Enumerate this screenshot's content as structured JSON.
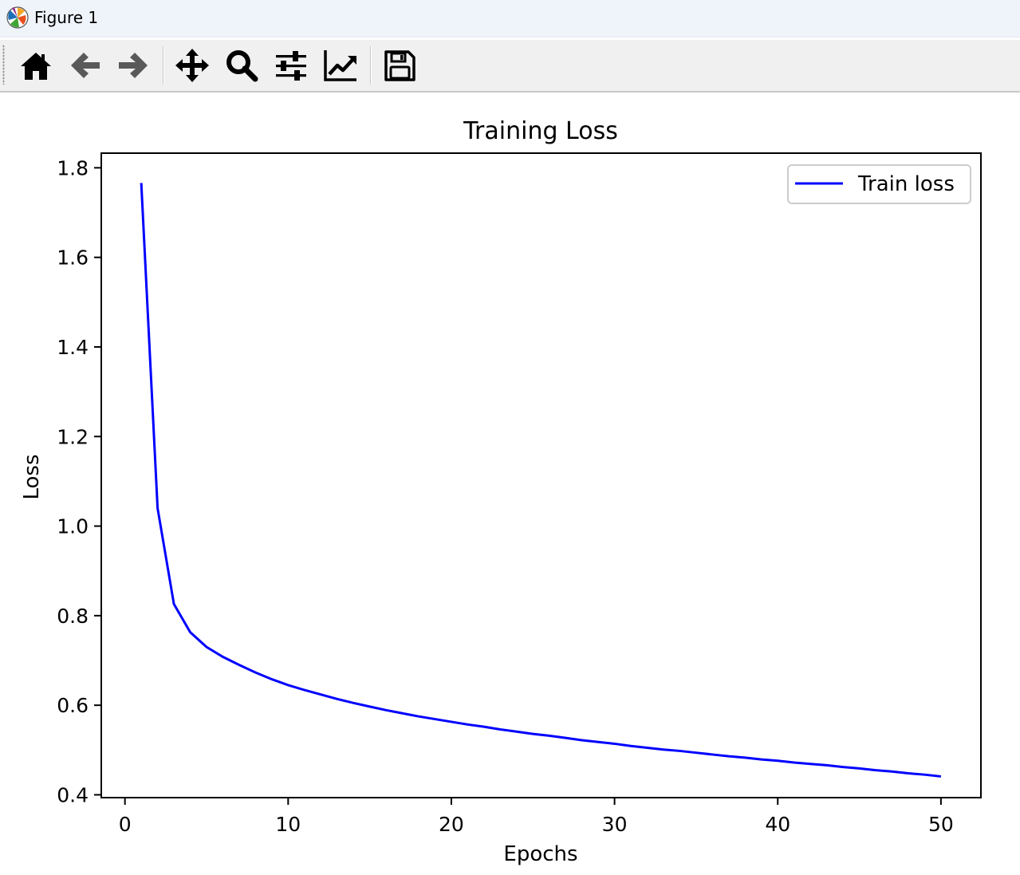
{
  "window": {
    "title": "Figure 1"
  },
  "toolbar": {
    "buttons": [
      {
        "id": "home",
        "icon": "home-icon"
      },
      {
        "id": "back",
        "icon": "arrow-left-icon"
      },
      {
        "id": "forward",
        "icon": "arrow-right-icon"
      },
      {
        "id": "pan",
        "icon": "move-icon"
      },
      {
        "id": "zoom",
        "icon": "magnifier-icon"
      },
      {
        "id": "configure",
        "icon": "sliders-icon"
      },
      {
        "id": "edit",
        "icon": "line-chart-icon"
      },
      {
        "id": "save",
        "icon": "floppy-disk-icon"
      }
    ]
  },
  "chart_data": {
    "type": "line",
    "title": "Training Loss",
    "xlabel": "Epochs",
    "ylabel": "Loss",
    "xlim": [
      -1.45,
      52.45
    ],
    "ylim": [
      0.3937,
      1.8327
    ],
    "xticks": [
      0,
      10,
      20,
      30,
      40,
      50
    ],
    "xtick_labels": [
      "0",
      "10",
      "20",
      "30",
      "40",
      "50"
    ],
    "yticks": [
      0.4,
      0.6,
      0.8,
      1.0,
      1.2,
      1.4,
      1.6,
      1.8
    ],
    "ytick_labels": [
      "0.4",
      "0.6",
      "0.8",
      "1.0",
      "1.2",
      "1.4",
      "1.6",
      "1.8"
    ],
    "grid": false,
    "legend": {
      "position": "top-right"
    },
    "series": [
      {
        "name": "Train loss",
        "color": "#0000ff",
        "x": [
          1,
          2,
          3,
          4,
          5,
          6,
          7,
          8,
          9,
          10,
          11,
          12,
          13,
          14,
          15,
          16,
          17,
          18,
          19,
          20,
          21,
          22,
          23,
          24,
          25,
          26,
          27,
          28,
          29,
          30,
          31,
          32,
          33,
          34,
          35,
          36,
          37,
          38,
          39,
          40,
          41,
          42,
          43,
          44,
          45,
          46,
          47,
          48,
          49,
          50
        ],
        "y": [
          1.766,
          1.04,
          0.826,
          0.763,
          0.73,
          0.708,
          0.69,
          0.673,
          0.658,
          0.645,
          0.634,
          0.624,
          0.614,
          0.605,
          0.597,
          0.589,
          0.582,
          0.575,
          0.569,
          0.563,
          0.557,
          0.552,
          0.546,
          0.541,
          0.536,
          0.532,
          0.527,
          0.522,
          0.518,
          0.514,
          0.509,
          0.505,
          0.501,
          0.498,
          0.494,
          0.49,
          0.486,
          0.483,
          0.479,
          0.476,
          0.472,
          0.469,
          0.466,
          0.462,
          0.459,
          0.455,
          0.452,
          0.448,
          0.445,
          0.441
        ]
      }
    ]
  }
}
